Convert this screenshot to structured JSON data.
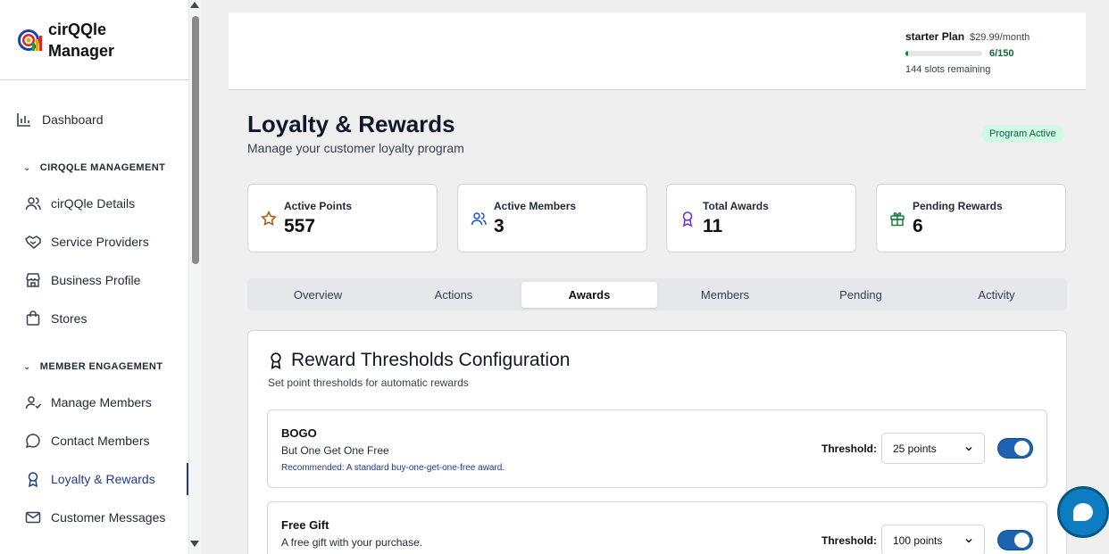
{
  "brand": {
    "line1": "cirQQle",
    "line2": "Manager"
  },
  "sidebar": {
    "dashboard": "Dashboard",
    "section1": "CIRQQLE MANAGEMENT",
    "section1_items": [
      "cirQQle Details",
      "Service Providers",
      "Business Profile",
      "Stores"
    ],
    "section2": "MEMBER ENGAGEMENT",
    "section2_items": [
      "Manage Members",
      "Contact Members",
      "Loyalty & Rewards",
      "Customer Messages"
    ]
  },
  "plan": {
    "name": "starter Plan",
    "price": "$29.99/month",
    "used": 6,
    "limit": 150,
    "count_label": "6/150",
    "remaining": "144 slots remaining"
  },
  "page": {
    "title": "Loyalty & Rewards",
    "subtitle": "Manage your customer loyalty program",
    "status": "Program Active"
  },
  "stats": [
    {
      "label": "Active Points",
      "value": "557",
      "icon": "star-icon"
    },
    {
      "label": "Active Members",
      "value": "3",
      "icon": "users-icon"
    },
    {
      "label": "Total Awards",
      "value": "11",
      "icon": "award-icon"
    },
    {
      "label": "Pending Rewards",
      "value": "6",
      "icon": "gift-icon"
    }
  ],
  "tabs": [
    "Overview",
    "Actions",
    "Awards",
    "Members",
    "Pending",
    "Activity"
  ],
  "active_tab": "Awards",
  "panel": {
    "title": "Reward Thresholds Configuration",
    "subtitle": "Set point thresholds for automatic rewards"
  },
  "rewards": [
    {
      "name": "BOGO",
      "description": "But One Get One Free",
      "recommendation": "Recommended: A standard buy-one-get-one-free award.",
      "threshold_label": "Threshold:",
      "threshold": "25 points",
      "enabled": true
    },
    {
      "name": "Free Gift",
      "description": "A free gift with your purchase.",
      "recommendation": "",
      "threshold_label": "Threshold:",
      "threshold": "100 points",
      "enabled": true
    }
  ],
  "colors": {
    "accent": "#1e3a8a",
    "toggle": "#1d63b0",
    "success": "#15803d",
    "badge_bg": "#d1fae5"
  }
}
